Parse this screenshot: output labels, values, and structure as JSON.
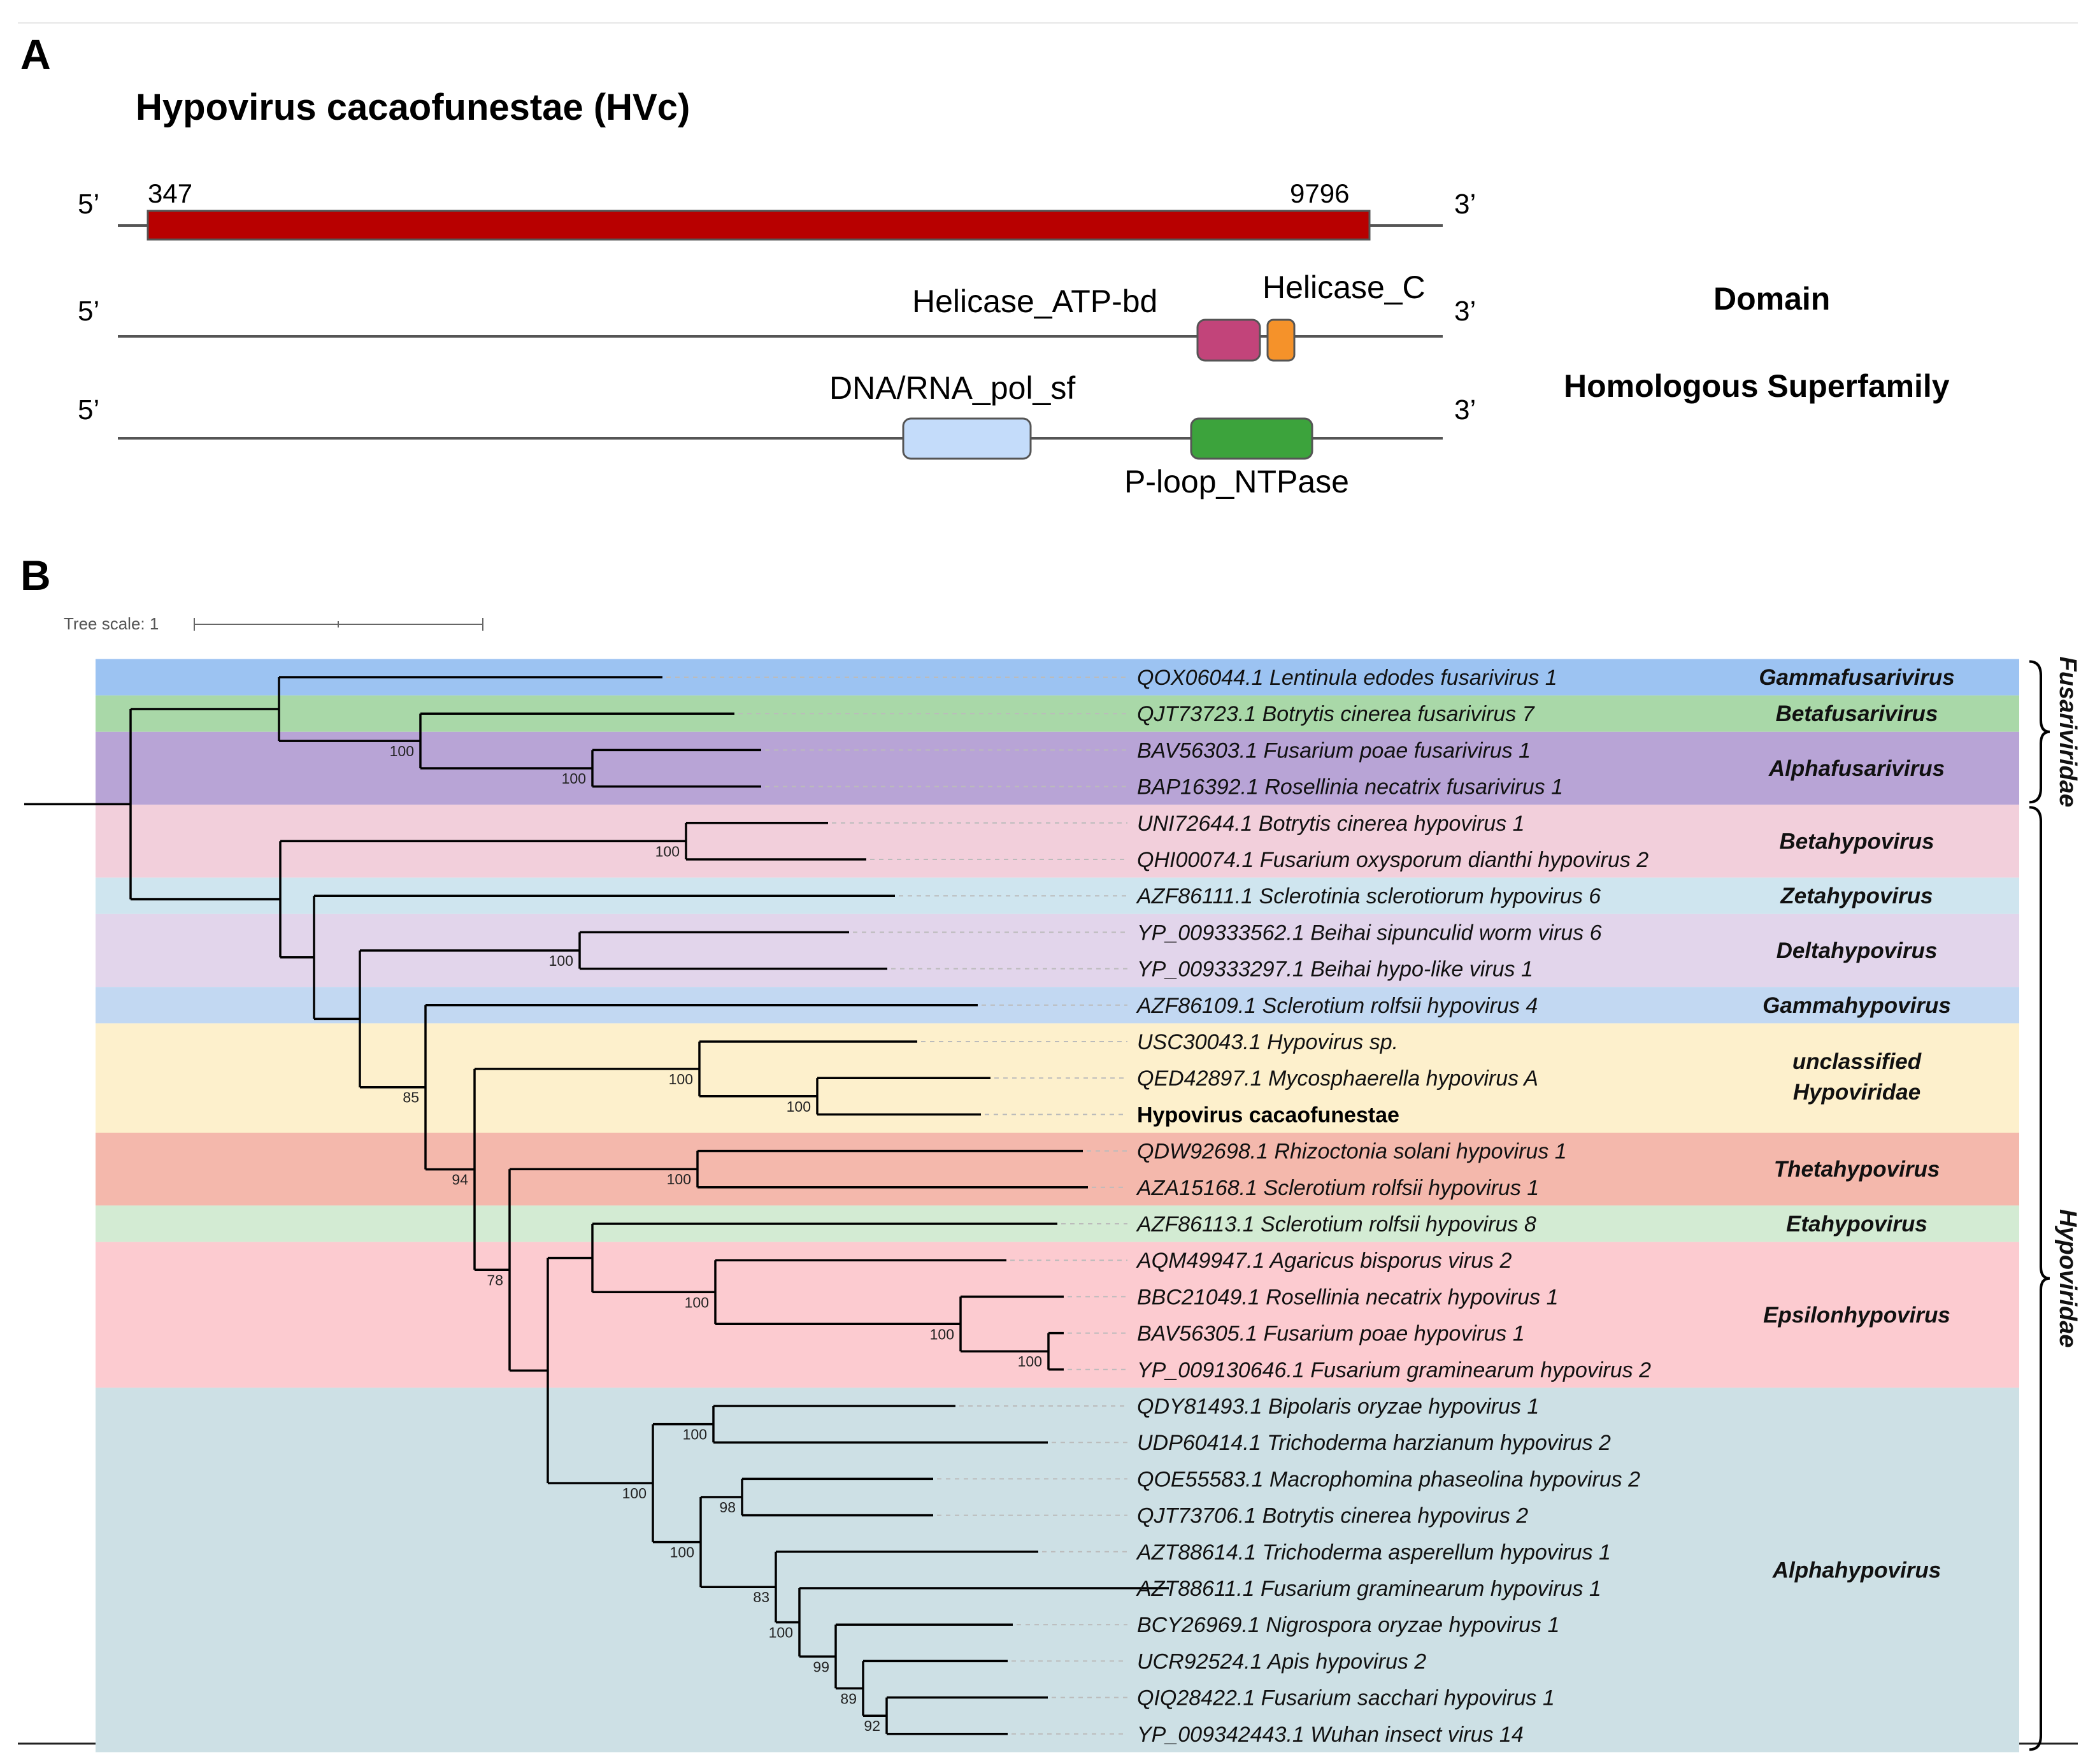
{
  "panel_a": {
    "label": "A",
    "title": "Hypovirus cacaofunestae (HVc)",
    "five_prime": "5’",
    "three_prime": "3’",
    "orf": {
      "start": "347",
      "end": "9796",
      "color": "#b80000"
    },
    "row_domain_label": "Domain",
    "row_superfamily_label": "Homologous Superfamily",
    "domains": [
      {
        "name": "Helicase_ATP-bd",
        "color": "#c2447a"
      },
      {
        "name": "Helicase_C",
        "color": "#f5922a"
      }
    ],
    "superfamilies": [
      {
        "name": "DNA/RNA_pol_sf",
        "color": "#c4dcfa"
      },
      {
        "name": "P-loop_NTPase",
        "color": "#3ca33c"
      }
    ]
  },
  "panel_b": {
    "label": "B",
    "tree_scale_label": "Tree scale: 1",
    "leaves": [
      {
        "label": "QOX06044.1 Lentinula edodes fusarivirus 1"
      },
      {
        "label": "QJT73723.1 Botrytis cinerea fusarivirus 7"
      },
      {
        "label": "BAV56303.1 Fusarium poae fusarivirus 1"
      },
      {
        "label": "BAP16392.1 Rosellinia necatrix fusarivirus 1"
      },
      {
        "label": "UNI72644.1 Botrytis cinerea hypovirus 1"
      },
      {
        "label": "QHI00074.1 Fusarium oxysporum dianthi hypovirus 2"
      },
      {
        "label": "AZF86111.1 Sclerotinia sclerotiorum hypovirus 6"
      },
      {
        "label": "YP_009333562.1 Beihai sipunculid worm virus 6"
      },
      {
        "label": "YP_009333297.1 Beihai hypo-like virus 1"
      },
      {
        "label": "AZF86109.1 Sclerotium rolfsii hypovirus 4"
      },
      {
        "label": "USC30043.1 Hypovirus sp."
      },
      {
        "label": "QED42897.1 Mycosphaerella hypovirus A"
      },
      {
        "label": "Hypovirus cacaofunestae",
        "bold": true
      },
      {
        "label": "QDW92698.1 Rhizoctonia solani hypovirus 1"
      },
      {
        "label": "AZA15168.1 Sclerotium rolfsii hypovirus 1"
      },
      {
        "label": "AZF86113.1 Sclerotium rolfsii hypovirus 8"
      },
      {
        "label": "AQM49947.1 Agaricus bisporus virus 2"
      },
      {
        "label": "BBC21049.1 Rosellinia necatrix hypovirus 1"
      },
      {
        "label": "BAV56305.1 Fusarium poae hypovirus 1"
      },
      {
        "label": "YP_009130646.1 Fusarium graminearum hypovirus 2"
      },
      {
        "label": "QDY81493.1 Bipolaris oryzae hypovirus 1"
      },
      {
        "label": "UDP60414.1 Trichoderma harzianum hypovirus 2"
      },
      {
        "label": "QOE55583.1 Macrophomina phaseolina hypovirus 2"
      },
      {
        "label": "QJT73706.1 Botrytis cinerea hypovirus 2"
      },
      {
        "label": "AZT88614.1 Trichoderma asperellum hypovirus 1"
      },
      {
        "label": "AZT88611.1 Fusarium graminearum hypovirus 1"
      },
      {
        "label": "BCY26969.1 Nigrospora oryzae hypovirus 1"
      },
      {
        "label": "UCR92524.1 Apis hypovirus 2"
      },
      {
        "label": "QIQ28422.1 Fusarium sacchari hypovirus 1"
      },
      {
        "label": "YP_009342443.1 Wuhan insect virus 14"
      }
    ],
    "genera": [
      {
        "label": "Gammafusarivirus",
        "color": "#9cc3f2",
        "rows": [
          0,
          0
        ]
      },
      {
        "label": "Betafusarivirus",
        "color": "#a9d8a8",
        "rows": [
          1,
          1
        ]
      },
      {
        "label": "Alphafusarivirus",
        "color": "#b8a4d6",
        "rows": [
          2,
          3
        ]
      },
      {
        "label": "Betahypovirus",
        "color": "#f2cfdb",
        "rows": [
          4,
          5
        ]
      },
      {
        "label": "Zetahypovirus",
        "color": "#cfe5ef",
        "rows": [
          6,
          6
        ]
      },
      {
        "label": "Deltahypovirus",
        "color": "#e2d5eb",
        "rows": [
          7,
          8
        ]
      },
      {
        "label": "Gammahypovirus",
        "color": "#c2d8f2",
        "rows": [
          9,
          9
        ]
      },
      {
        "label": "unclassified",
        "label2": "Hypoviridae",
        "color": "#fdf0cc",
        "rows": [
          10,
          12
        ]
      },
      {
        "label": "Thetahypovirus",
        "color": "#f4b8ac",
        "rows": [
          13,
          14
        ]
      },
      {
        "label": "Etahypovirus",
        "color": "#d3ebd3",
        "rows": [
          15,
          15
        ]
      },
      {
        "label": "Epsilonhypovirus",
        "color": "#fccbd0",
        "rows": [
          16,
          19
        ]
      },
      {
        "label": "Alphahypovirus",
        "color": "#cde0e5",
        "rows": [
          20,
          29
        ]
      }
    ],
    "families": [
      {
        "label": "Fusariviridae",
        "rows": [
          0,
          3
        ]
      },
      {
        "label": "Hypoviridae",
        "rows": [
          4,
          29
        ]
      }
    ],
    "bootstrap": [
      {
        "value": "100"
      },
      {
        "value": "100"
      },
      {
        "value": "100"
      },
      {
        "value": "100"
      },
      {
        "value": "100"
      },
      {
        "value": "85"
      },
      {
        "value": "94"
      },
      {
        "value": "78"
      },
      {
        "value": "100"
      },
      {
        "value": "100"
      },
      {
        "value": "100"
      },
      {
        "value": "100"
      },
      {
        "value": "100"
      },
      {
        "value": "100"
      },
      {
        "value": "100"
      },
      {
        "value": "100"
      },
      {
        "value": "98"
      },
      {
        "value": "83"
      },
      {
        "value": "100"
      },
      {
        "value": "99"
      },
      {
        "value": "89"
      },
      {
        "value": "92"
      }
    ]
  }
}
